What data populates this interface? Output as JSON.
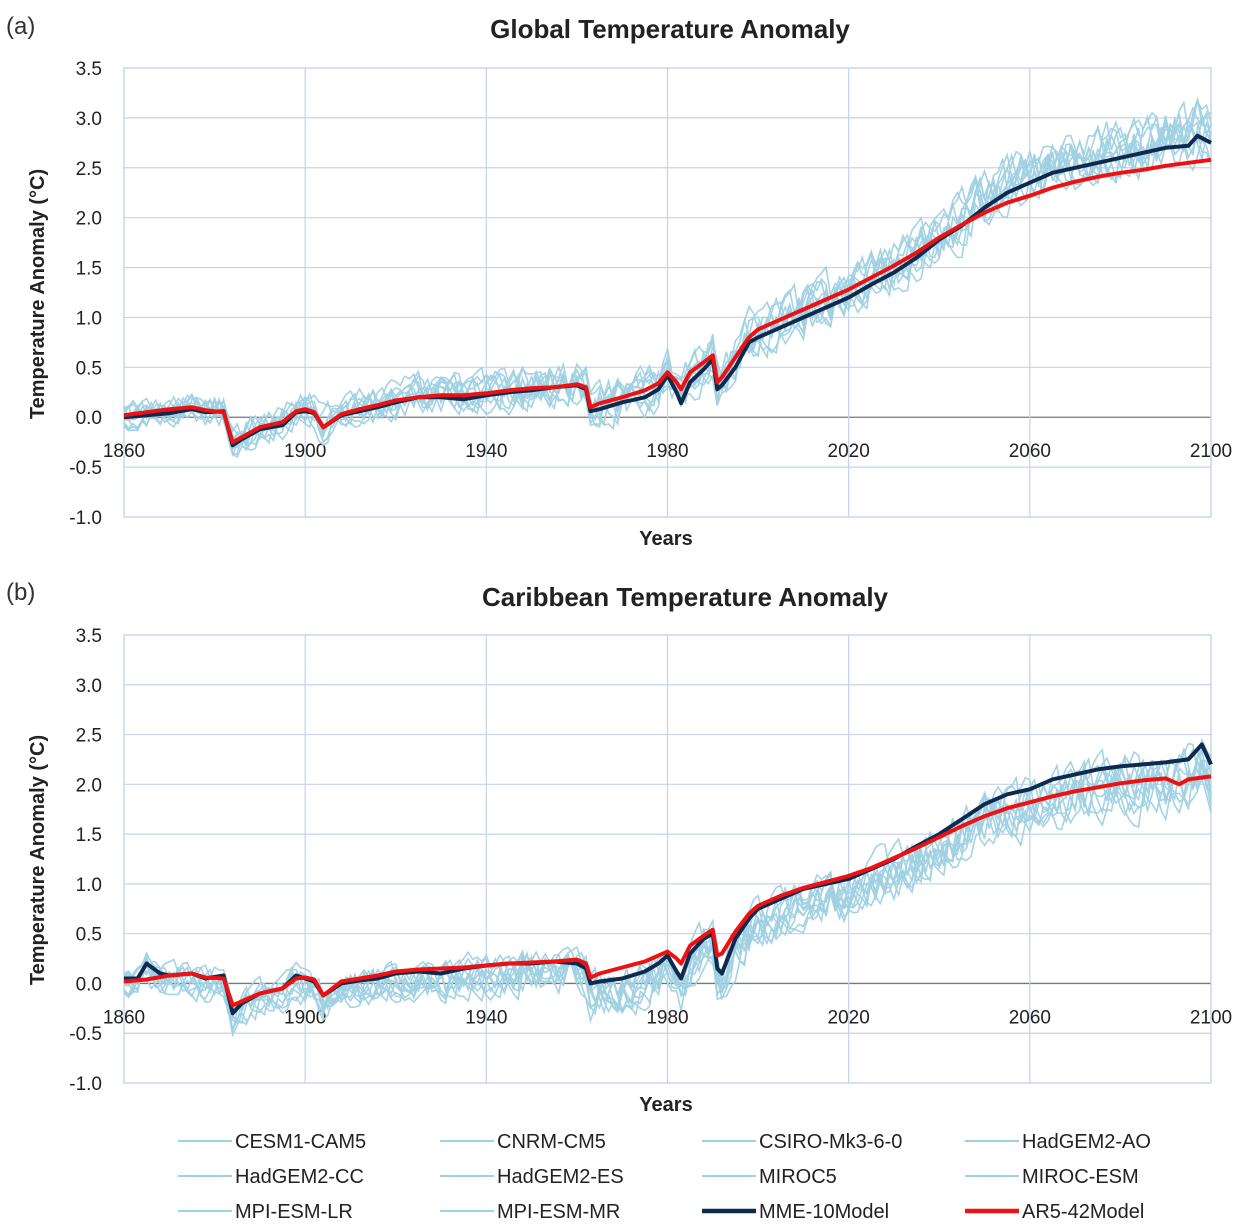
{
  "colors": {
    "model": "#9fd1e3",
    "mme": "#0e2a4f",
    "ar5": "#ee1111",
    "grid": "#c5d3ea"
  },
  "legend": [
    {
      "label": "CESM1-CAM5",
      "kind": "model"
    },
    {
      "label": "CNRM-CM5",
      "kind": "model"
    },
    {
      "label": "CSIRO-Mk3-6-0",
      "kind": "model"
    },
    {
      "label": "HadGEM2-AO",
      "kind": "model"
    },
    {
      "label": "HadGEM2-CC",
      "kind": "model"
    },
    {
      "label": "HadGEM2-ES",
      "kind": "model"
    },
    {
      "label": "MIROC5",
      "kind": "model"
    },
    {
      "label": "MIROC-ESM",
      "kind": "model"
    },
    {
      "label": "MPI-ESM-LR",
      "kind": "model"
    },
    {
      "label": "MPI-ESM-MR",
      "kind": "model"
    },
    {
      "label": "MME-10Model",
      "kind": "mme"
    },
    {
      "label": "AR5-42Model",
      "kind": "ar5"
    }
  ],
  "chart_data": [
    {
      "type": "line",
      "panel_label": "(a)",
      "title": "Global Temperature Anomaly",
      "xlabel": "Years",
      "ylabel": "Temperature Anomaly (°C)",
      "xlim": [
        1860,
        2100
      ],
      "ylim": [
        -1.0,
        3.5
      ],
      "xticks": [
        1860,
        1900,
        1940,
        1980,
        2020,
        2060,
        2100
      ],
      "yticks": [
        "-1.0",
        "-0.5",
        "0.0",
        "0.5",
        "1.0",
        "1.5",
        "2.0",
        "2.5",
        "3.0",
        "3.5"
      ],
      "grid": true,
      "model_spread": 0.18,
      "series": [
        {
          "name": "MME-10Model",
          "x": [
            1860,
            1865,
            1870,
            1875,
            1878,
            1882,
            1884,
            1886,
            1890,
            1895,
            1898,
            1900,
            1902,
            1904,
            1908,
            1912,
            1916,
            1920,
            1925,
            1930,
            1935,
            1940,
            1945,
            1950,
            1955,
            1960,
            1962,
            1963,
            1965,
            1970,
            1975,
            1978,
            1980,
            1982,
            1983,
            1985,
            1988,
            1990,
            1991,
            1992,
            1995,
            1998,
            2000,
            2005,
            2010,
            2015,
            2020,
            2025,
            2030,
            2035,
            2040,
            2045,
            2050,
            2055,
            2060,
            2065,
            2070,
            2075,
            2080,
            2085,
            2090,
            2095,
            2097,
            2100
          ],
          "values": [
            0.0,
            0.02,
            0.04,
            0.08,
            0.05,
            0.06,
            -0.28,
            -0.22,
            -0.12,
            -0.08,
            0.05,
            0.06,
            0.04,
            -0.1,
            0.02,
            0.06,
            0.1,
            0.15,
            0.2,
            0.2,
            0.18,
            0.22,
            0.25,
            0.27,
            0.3,
            0.32,
            0.28,
            0.06,
            0.08,
            0.15,
            0.2,
            0.28,
            0.42,
            0.25,
            0.14,
            0.35,
            0.48,
            0.58,
            0.28,
            0.32,
            0.5,
            0.75,
            0.8,
            0.9,
            1.0,
            1.1,
            1.2,
            1.33,
            1.45,
            1.6,
            1.78,
            1.92,
            2.1,
            2.25,
            2.35,
            2.45,
            2.5,
            2.55,
            2.6,
            2.65,
            2.7,
            2.72,
            2.82,
            2.75
          ]
        },
        {
          "name": "AR5-42Model",
          "x": [
            1860,
            1865,
            1870,
            1875,
            1878,
            1882,
            1884,
            1886,
            1890,
            1895,
            1898,
            1900,
            1902,
            1904,
            1908,
            1912,
            1916,
            1920,
            1925,
            1930,
            1935,
            1940,
            1945,
            1950,
            1955,
            1960,
            1962,
            1963,
            1965,
            1970,
            1975,
            1978,
            1980,
            1982,
            1983,
            1985,
            1988,
            1990,
            1991,
            1992,
            1995,
            1998,
            2000,
            2005,
            2010,
            2015,
            2020,
            2025,
            2030,
            2035,
            2040,
            2045,
            2050,
            2055,
            2060,
            2065,
            2070,
            2075,
            2080,
            2085,
            2090,
            2095,
            2100
          ],
          "values": [
            0.02,
            0.05,
            0.08,
            0.1,
            0.07,
            0.05,
            -0.25,
            -0.2,
            -0.1,
            -0.05,
            0.06,
            0.08,
            0.05,
            -0.1,
            0.03,
            0.08,
            0.12,
            0.17,
            0.2,
            0.22,
            0.22,
            0.24,
            0.27,
            0.29,
            0.3,
            0.33,
            0.3,
            0.1,
            0.14,
            0.2,
            0.27,
            0.34,
            0.45,
            0.35,
            0.28,
            0.45,
            0.55,
            0.62,
            0.35,
            0.4,
            0.6,
            0.8,
            0.88,
            0.98,
            1.08,
            1.18,
            1.28,
            1.4,
            1.52,
            1.65,
            1.8,
            1.93,
            2.05,
            2.15,
            2.22,
            2.3,
            2.36,
            2.41,
            2.45,
            2.48,
            2.52,
            2.55,
            2.58
          ]
        }
      ]
    },
    {
      "type": "line",
      "panel_label": "(b)",
      "title": "Caribbean Temperature Anomaly",
      "xlabel": "Years",
      "ylabel": "Temperature Anomaly (°C)",
      "xlim": [
        1860,
        2100
      ],
      "ylim": [
        -1.0,
        3.5
      ],
      "xticks": [
        1860,
        1900,
        1940,
        1980,
        2020,
        2060,
        2100
      ],
      "yticks": [
        "-1.0",
        "-0.5",
        "0.0",
        "0.5",
        "1.0",
        "1.5",
        "2.0",
        "2.5",
        "3.0",
        "3.5"
      ],
      "grid": true,
      "model_spread": 0.24,
      "series": [
        {
          "name": "MME-10Model",
          "x": [
            1860,
            1863,
            1865,
            1868,
            1870,
            1875,
            1878,
            1882,
            1884,
            1886,
            1890,
            1895,
            1898,
            1900,
            1902,
            1904,
            1908,
            1912,
            1916,
            1920,
            1925,
            1930,
            1935,
            1940,
            1945,
            1950,
            1955,
            1960,
            1962,
            1963,
            1965,
            1970,
            1975,
            1978,
            1980,
            1982,
            1983,
            1985,
            1988,
            1990,
            1991,
            1992,
            1995,
            1998,
            2000,
            2005,
            2010,
            2015,
            2020,
            2025,
            2030,
            2035,
            2040,
            2045,
            2050,
            2055,
            2060,
            2065,
            2070,
            2075,
            2080,
            2085,
            2090,
            2095,
            2098,
            2100
          ],
          "values": [
            0.05,
            0.05,
            0.2,
            0.1,
            0.08,
            0.1,
            0.05,
            0.08,
            -0.3,
            -0.2,
            -0.1,
            -0.05,
            0.08,
            0.05,
            0.02,
            -0.12,
            0.0,
            0.03,
            0.05,
            0.1,
            0.12,
            0.1,
            0.15,
            0.18,
            0.2,
            0.2,
            0.22,
            0.2,
            0.15,
            0.0,
            0.02,
            0.05,
            0.12,
            0.2,
            0.28,
            0.12,
            0.05,
            0.3,
            0.45,
            0.5,
            0.15,
            0.1,
            0.45,
            0.65,
            0.75,
            0.85,
            0.95,
            1.0,
            1.05,
            1.15,
            1.25,
            1.38,
            1.5,
            1.65,
            1.8,
            1.9,
            1.95,
            2.05,
            2.1,
            2.15,
            2.18,
            2.2,
            2.22,
            2.25,
            2.4,
            2.2
          ]
        },
        {
          "name": "AR5-42Model",
          "x": [
            1860,
            1865,
            1870,
            1875,
            1878,
            1882,
            1884,
            1886,
            1890,
            1895,
            1898,
            1900,
            1902,
            1904,
            1908,
            1912,
            1916,
            1920,
            1925,
            1930,
            1935,
            1940,
            1945,
            1950,
            1955,
            1960,
            1962,
            1963,
            1965,
            1970,
            1975,
            1978,
            1980,
            1982,
            1983,
            1985,
            1988,
            1990,
            1991,
            1992,
            1995,
            1998,
            2000,
            2005,
            2010,
            2015,
            2020,
            2025,
            2030,
            2035,
            2040,
            2045,
            2050,
            2055,
            2060,
            2065,
            2070,
            2075,
            2080,
            2085,
            2090,
            2093,
            2095,
            2100
          ],
          "values": [
            0.02,
            0.04,
            0.08,
            0.1,
            0.06,
            0.05,
            -0.22,
            -0.18,
            -0.1,
            -0.05,
            0.05,
            0.06,
            0.04,
            -0.12,
            0.02,
            0.05,
            0.08,
            0.12,
            0.14,
            0.15,
            0.16,
            0.18,
            0.2,
            0.21,
            0.22,
            0.24,
            0.2,
            0.06,
            0.1,
            0.16,
            0.22,
            0.28,
            0.32,
            0.25,
            0.2,
            0.38,
            0.48,
            0.54,
            0.28,
            0.3,
            0.52,
            0.7,
            0.78,
            0.88,
            0.96,
            1.02,
            1.08,
            1.16,
            1.26,
            1.36,
            1.47,
            1.58,
            1.68,
            1.76,
            1.82,
            1.88,
            1.93,
            1.97,
            2.01,
            2.04,
            2.06,
            2.0,
            2.05,
            2.08
          ]
        }
      ]
    }
  ]
}
